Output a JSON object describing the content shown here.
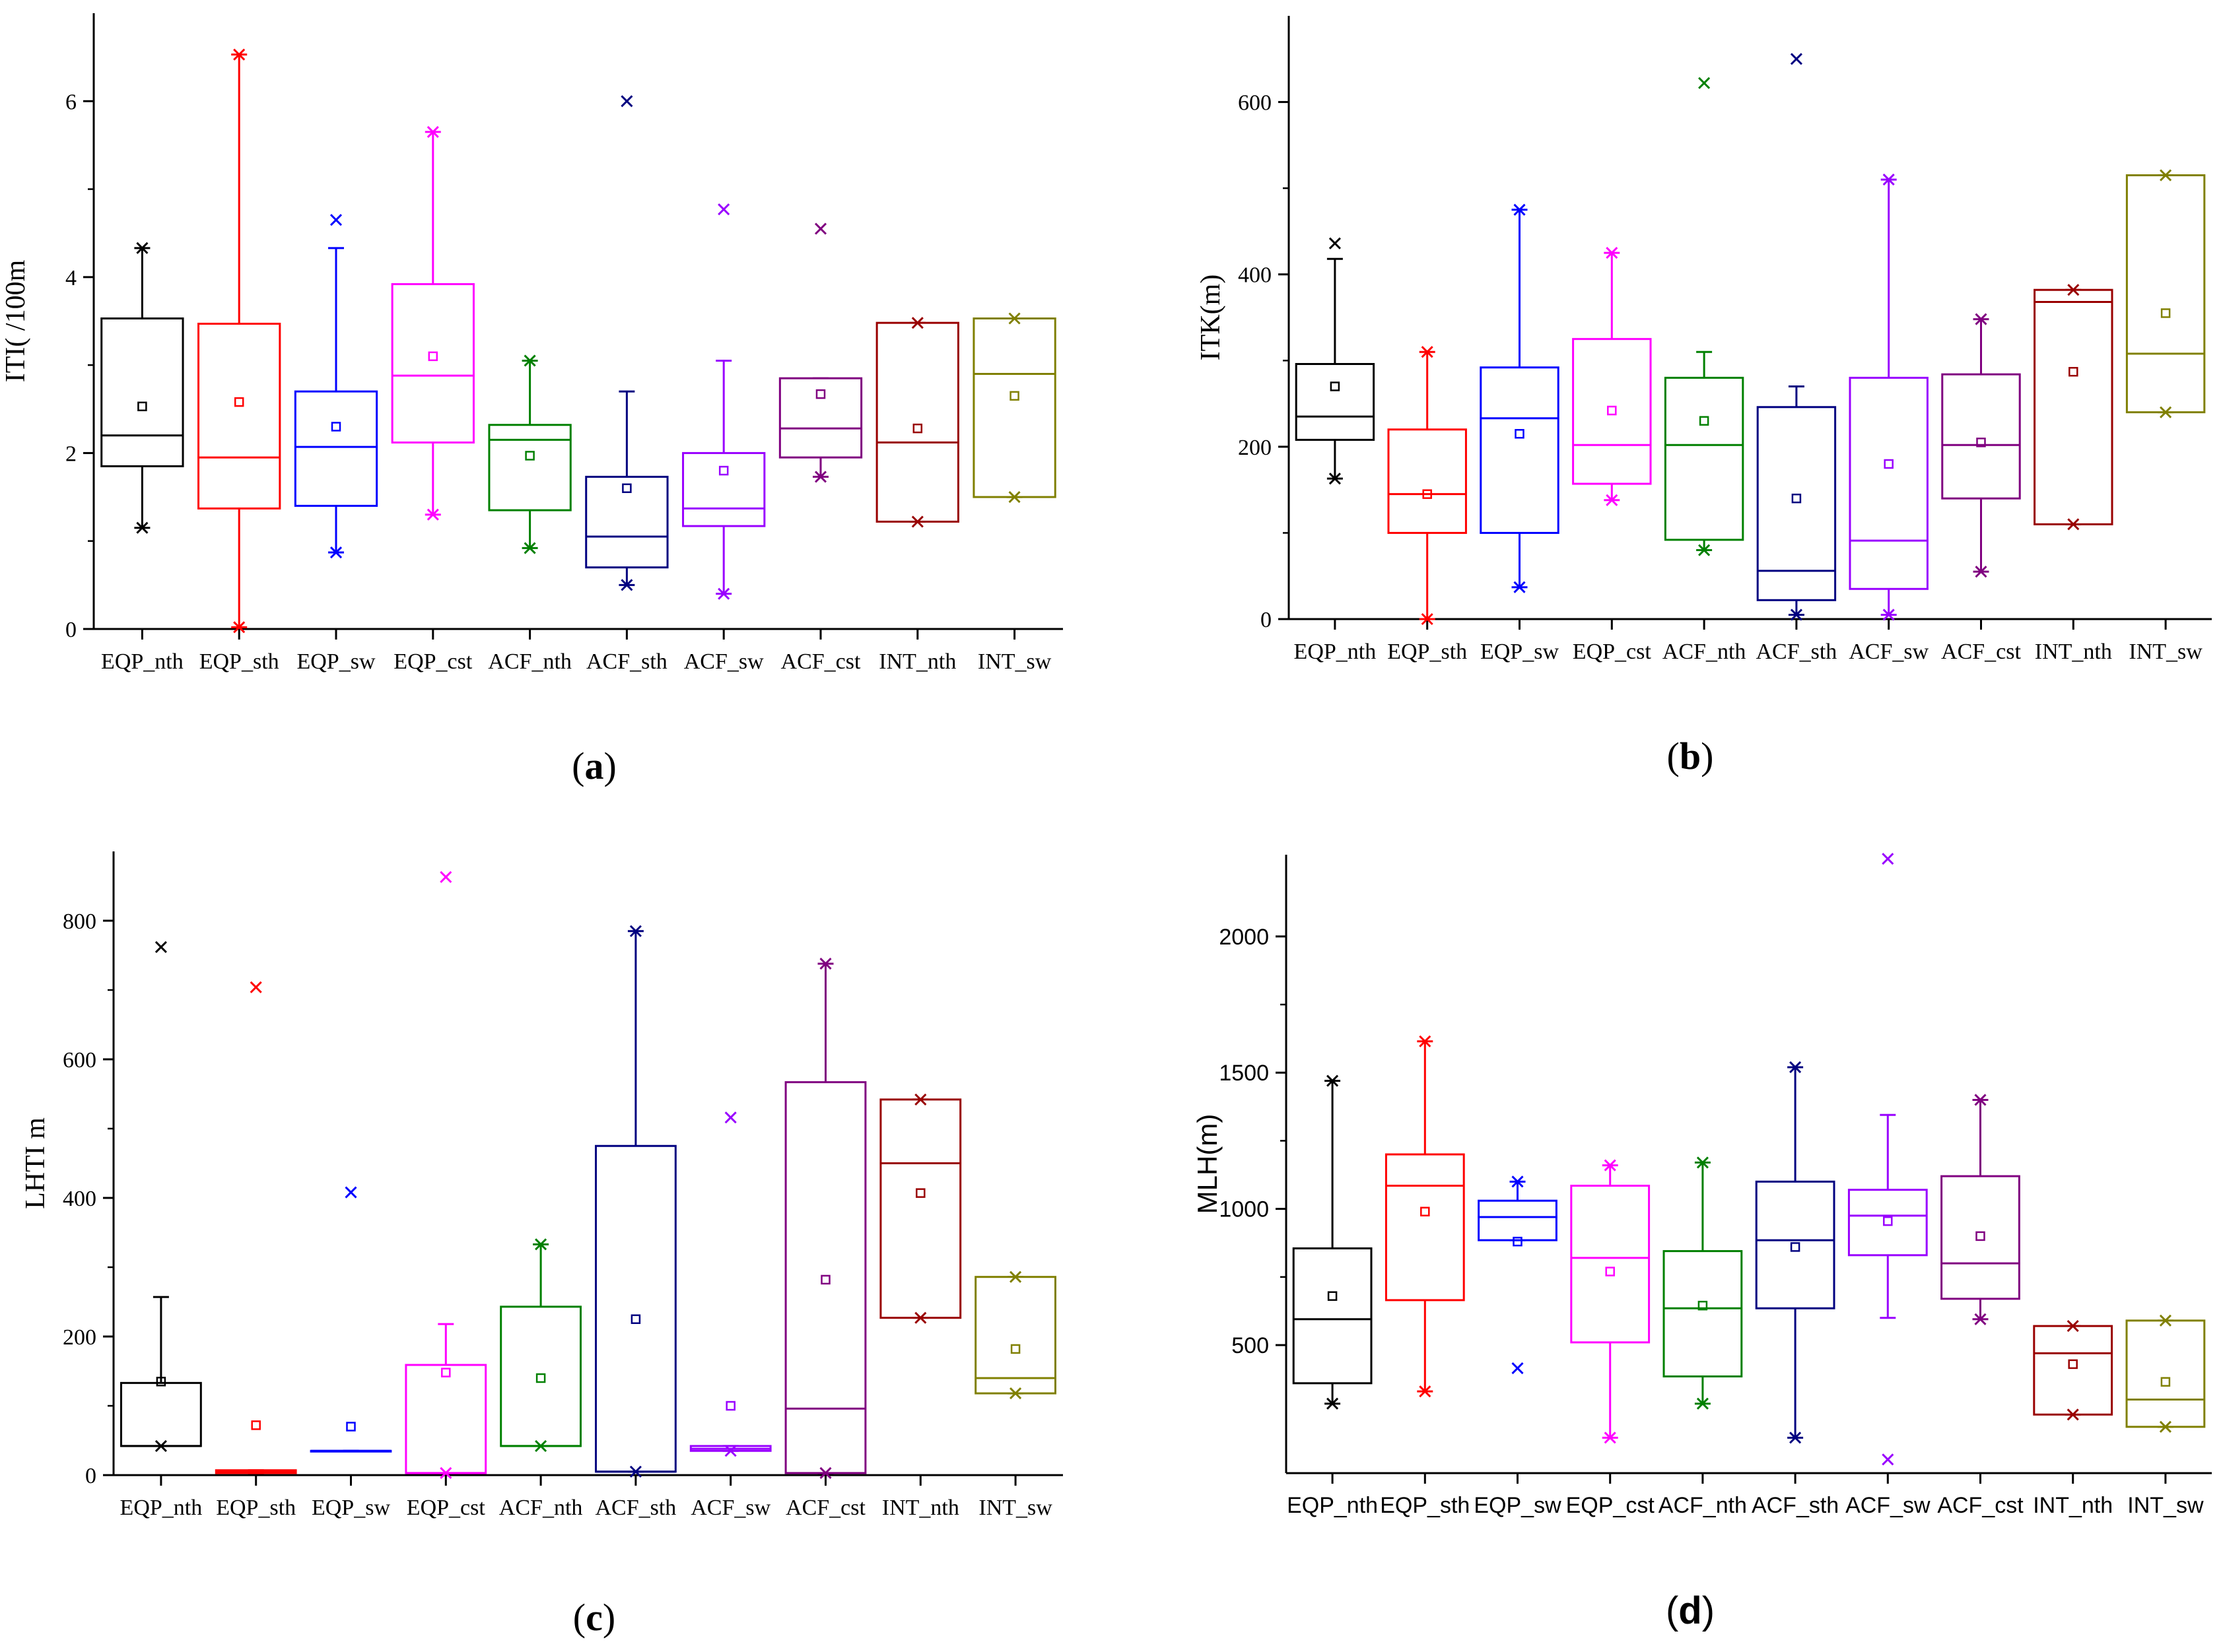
{
  "chart_data": [
    {
      "type": "box",
      "panel_label": "a",
      "ylabel": "ITI(    /100m",
      "ylim": [
        0,
        7
      ],
      "yticks": [
        0,
        2,
        4,
        6
      ],
      "categories": [
        "EQP_nth",
        "EQP_sth",
        "EQP_sw",
        "EQP_cst",
        "ACF_nth",
        "ACF_sth",
        "ACF_sw",
        "ACF_cst",
        "INT_nth",
        "INT_sw"
      ],
      "colors": [
        "#000000",
        "#ff0000",
        "#0000ff",
        "#ff00ff",
        "#008000",
        "#000080",
        "#9900ff",
        "#800080",
        "#990000",
        "#808000"
      ],
      "boxes": [
        {
          "q1": 1.85,
          "median": 2.2,
          "q3": 3.53,
          "whislo": 1.15,
          "whishi": 4.33,
          "mean": 2.53,
          "fliers": [
            1.15,
            4.33
          ]
        },
        {
          "q1": 1.37,
          "median": 1.95,
          "q3": 3.47,
          "whislo": 0.02,
          "whishi": 6.53,
          "mean": 2.58,
          "fliers": [
            0.02,
            6.53
          ]
        },
        {
          "q1": 1.4,
          "median": 2.07,
          "q3": 2.7,
          "whislo": 0.87,
          "whishi": 4.33,
          "mean": 2.3,
          "fliers": [
            0.87,
            4.65
          ]
        },
        {
          "q1": 2.12,
          "median": 2.88,
          "q3": 3.92,
          "whislo": 1.3,
          "whishi": 5.65,
          "mean": 3.1,
          "fliers": [
            1.3,
            5.65
          ]
        },
        {
          "q1": 1.35,
          "median": 2.15,
          "q3": 2.32,
          "whislo": 0.92,
          "whishi": 3.05,
          "mean": 1.97,
          "fliers": [
            0.92,
            3.05
          ]
        },
        {
          "q1": 0.7,
          "median": 1.05,
          "q3": 1.73,
          "whislo": 0.5,
          "whishi": 2.7,
          "mean": 1.6,
          "fliers": [
            0.5,
            6.0
          ]
        },
        {
          "q1": 1.17,
          "median": 1.37,
          "q3": 2.0,
          "whislo": 0.4,
          "whishi": 3.05,
          "mean": 1.8,
          "fliers": [
            0.4,
            4.77
          ]
        },
        {
          "q1": 1.95,
          "median": 2.28,
          "q3": 2.85,
          "whislo": 1.73,
          "whishi": 2.85,
          "mean": 2.67,
          "fliers": [
            1.73,
            4.55
          ]
        },
        {
          "q1": 1.22,
          "median": 2.12,
          "q3": 3.48,
          "whislo": 1.22,
          "whishi": 3.48,
          "mean": 2.28,
          "fliers": [
            1.22,
            3.48
          ]
        },
        {
          "q1": 1.5,
          "median": 2.9,
          "q3": 3.53,
          "whislo": 1.5,
          "whishi": 3.53,
          "mean": 2.65,
          "fliers": [
            1.5,
            3.53
          ]
        }
      ]
    },
    {
      "type": "box",
      "panel_label": "b",
      "ylabel": "ITK(m)",
      "ylim": [
        0,
        700
      ],
      "yticks": [
        0,
        200,
        400,
        600
      ],
      "categories": [
        "EQP_nth",
        "EQP_sth",
        "EQP_sw",
        "EQP_cst",
        "ACF_nth",
        "ACF_sth",
        "ACF_sw",
        "ACF_cst",
        "INT_nth",
        "INT_sw"
      ],
      "colors": [
        "#000000",
        "#ff0000",
        "#0000ff",
        "#ff00ff",
        "#008000",
        "#000080",
        "#9900ff",
        "#800080",
        "#990000",
        "#808000"
      ],
      "boxes": [
        {
          "q1": 208,
          "median": 235,
          "q3": 296,
          "whislo": 163,
          "whishi": 418,
          "mean": 270,
          "fliers": [
            163,
            436
          ]
        },
        {
          "q1": 100,
          "median": 145,
          "q3": 220,
          "whislo": 0,
          "whishi": 310,
          "mean": 145,
          "fliers": [
            0,
            310
          ]
        },
        {
          "q1": 100,
          "median": 233,
          "q3": 292,
          "whislo": 37,
          "whishi": 475,
          "mean": 215,
          "fliers": [
            37,
            475
          ]
        },
        {
          "q1": 157,
          "median": 202,
          "q3": 325,
          "whislo": 138,
          "whishi": 425,
          "mean": 242,
          "fliers": [
            138,
            425
          ]
        },
        {
          "q1": 92,
          "median": 202,
          "q3": 280,
          "whislo": 80,
          "whishi": 310,
          "mean": 230,
          "fliers": [
            80,
            622
          ]
        },
        {
          "q1": 22,
          "median": 56,
          "q3": 246,
          "whislo": 5,
          "whishi": 270,
          "mean": 140,
          "fliers": [
            5,
            650
          ]
        },
        {
          "q1": 35,
          "median": 91,
          "q3": 280,
          "whislo": 5,
          "whishi": 510,
          "mean": 180,
          "fliers": [
            5,
            510
          ]
        },
        {
          "q1": 140,
          "median": 202,
          "q3": 284,
          "whislo": 55,
          "whishi": 348,
          "mean": 205,
          "fliers": [
            55,
            348
          ]
        },
        {
          "q1": 110,
          "median": 368,
          "q3": 382,
          "whislo": 110,
          "whishi": 382,
          "mean": 287,
          "fliers": [
            110,
            382
          ]
        },
        {
          "q1": 240,
          "median": 308,
          "q3": 515,
          "whislo": 240,
          "whishi": 515,
          "mean": 355,
          "fliers": [
            240,
            515
          ]
        }
      ]
    },
    {
      "type": "box",
      "panel_label": "c",
      "ylabel": "LHTI    m",
      "ylim": [
        0,
        900
      ],
      "yticks": [
        0,
        200,
        400,
        600,
        800
      ],
      "categories": [
        "EQP_nth",
        "EQP_sth",
        "EQP_sw",
        "EQP_cst",
        "ACF_nth",
        "ACF_sth",
        "ACF_sw",
        "ACF_cst",
        "INT_nth",
        "INT_sw"
      ],
      "colors": [
        "#000000",
        "#ff0000",
        "#0000ff",
        "#ff00ff",
        "#008000",
        "#000080",
        "#9900ff",
        "#800080",
        "#990000",
        "#808000"
      ],
      "boxes": [
        {
          "q1": 42,
          "median": 42,
          "q3": 133,
          "whislo": 42,
          "whishi": 257,
          "mean": 135,
          "fliers": [
            42,
            762
          ]
        },
        {
          "q1": 3,
          "median": 5,
          "q3": 7,
          "whislo": 3,
          "whishi": 7,
          "mean": 72,
          "fliers": [
            704
          ]
        },
        {
          "q1": 35,
          "median": 35,
          "q3": 35,
          "whislo": 35,
          "whishi": 35,
          "mean": 70,
          "fliers": [
            408
          ]
        },
        {
          "q1": 3,
          "median": 3,
          "q3": 159,
          "whislo": 3,
          "whishi": 218,
          "mean": 148,
          "fliers": [
            3,
            863
          ]
        },
        {
          "q1": 42,
          "median": 42,
          "q3": 243,
          "whislo": 42,
          "whishi": 333,
          "mean": 140,
          "fliers": [
            42,
            333
          ]
        },
        {
          "q1": 5,
          "median": 5,
          "q3": 475,
          "whislo": 5,
          "whishi": 785,
          "mean": 225,
          "fliers": [
            5,
            785
          ]
        },
        {
          "q1": 35,
          "median": 38,
          "q3": 42,
          "whislo": 35,
          "whishi": 42,
          "mean": 100,
          "fliers": [
            35,
            516
          ]
        },
        {
          "q1": 3,
          "median": 96,
          "q3": 567,
          "whislo": 3,
          "whishi": 738,
          "mean": 282,
          "fliers": [
            3,
            738
          ]
        },
        {
          "q1": 227,
          "median": 450,
          "q3": 542,
          "whislo": 227,
          "whishi": 542,
          "mean": 407,
          "fliers": [
            227,
            542
          ]
        },
        {
          "q1": 118,
          "median": 140,
          "q3": 286,
          "whislo": 118,
          "whishi": 286,
          "mean": 182,
          "fliers": [
            118,
            286
          ]
        }
      ]
    },
    {
      "type": "box",
      "panel_label": "d",
      "ylabel": "MLH(m)",
      "ylim": [
        30,
        2300
      ],
      "yticks": [
        500,
        1000,
        1500,
        2000
      ],
      "categories": [
        "EQP_nth",
        "EQP_sth",
        "EQP_sw",
        "EQP_cst",
        "ACF_nth",
        "ACF_sth",
        "ACF_sw",
        "ACF_cst",
        "INT_nth",
        "INT_sw"
      ],
      "colors": [
        "#000000",
        "#ff0000",
        "#0000ff",
        "#ff00ff",
        "#008000",
        "#000080",
        "#9900ff",
        "#800080",
        "#990000",
        "#808000"
      ],
      "boxes": [
        {
          "q1": 360,
          "median": 595,
          "q3": 855,
          "whislo": 285,
          "whishi": 1470,
          "mean": 680,
          "fliers": [
            285,
            1470
          ]
        },
        {
          "q1": 665,
          "median": 1085,
          "q3": 1200,
          "whislo": 330,
          "whishi": 1615,
          "mean": 990,
          "fliers": [
            330,
            1615
          ]
        },
        {
          "q1": 885,
          "median": 970,
          "q3": 1030,
          "whislo": 885,
          "whishi": 1100,
          "mean": 880,
          "fliers": [
            415,
            1100
          ]
        },
        {
          "q1": 510,
          "median": 820,
          "q3": 1085,
          "whislo": 160,
          "whishi": 1160,
          "mean": 770,
          "fliers": [
            160,
            1160
          ]
        },
        {
          "q1": 385,
          "median": 635,
          "q3": 845,
          "whislo": 285,
          "whishi": 1170,
          "mean": 645,
          "fliers": [
            285,
            1170
          ]
        },
        {
          "q1": 635,
          "median": 885,
          "q3": 1100,
          "whislo": 160,
          "whishi": 1520,
          "mean": 860,
          "fliers": [
            160,
            1520
          ]
        },
        {
          "q1": 830,
          "median": 975,
          "q3": 1070,
          "whislo": 600,
          "whishi": 1345,
          "mean": 955,
          "fliers": [
            80,
            2285
          ]
        },
        {
          "q1": 670,
          "median": 800,
          "q3": 1120,
          "whislo": 595,
          "whishi": 1400,
          "mean": 900,
          "fliers": [
            595,
            1400
          ]
        },
        {
          "q1": 245,
          "median": 470,
          "q3": 570,
          "whislo": 245,
          "whishi": 570,
          "mean": 430,
          "fliers": [
            245,
            570
          ]
        },
        {
          "q1": 200,
          "median": 300,
          "q3": 590,
          "whislo": 200,
          "whishi": 590,
          "mean": 365,
          "fliers": [
            200,
            590
          ]
        }
      ]
    }
  ]
}
